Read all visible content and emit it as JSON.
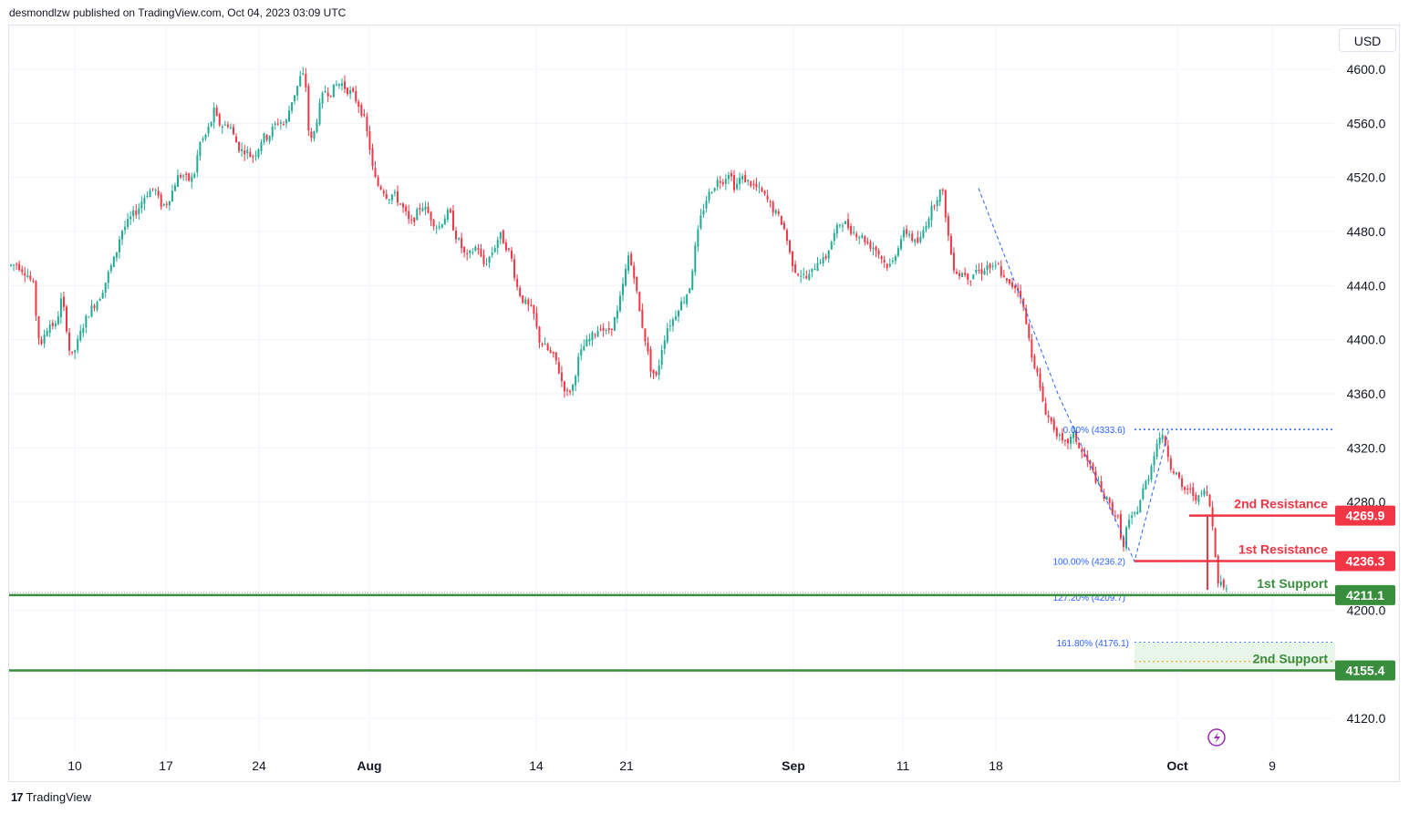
{
  "header": {
    "text": "desmondlzw published on TradingView.com, Oct 04, 2023 03:09 UTC"
  },
  "currency_label": "USD",
  "footer": {
    "brand": "TradingView",
    "logo_glyph": "17"
  },
  "colors": {
    "up": "#22ab94",
    "down": "#f23645",
    "resistance": "#f23645",
    "support": "#388e3c",
    "fib": "#2962ff",
    "grid": "#f0f3fa",
    "axis_text": "#131722"
  },
  "chart_data": {
    "type": "candlestick",
    "title": "",
    "y_axis": {
      "ticks": [
        4600.0,
        4560.0,
        4520.0,
        4480.0,
        4440.0,
        4400.0,
        4360.0,
        4320.0,
        4280.0,
        4200.0,
        4120.0
      ],
      "tick_labels": [
        "4600.0",
        "4560.0",
        "4520.0",
        "4480.0",
        "4440.0",
        "4400.0",
        "4360.0",
        "4320.0",
        "4280.0",
        "4200.0",
        "4120.0"
      ],
      "ylim": [
        4105,
        4620
      ]
    },
    "x_axis": {
      "tick_labels": [
        "10",
        "17",
        "24",
        "Aug",
        "14",
        "21",
        "Sep",
        "11",
        "18",
        "Oct",
        "9"
      ],
      "bold_labels": [
        "Aug",
        "Sep",
        "Oct"
      ]
    },
    "levels": [
      {
        "label": "2nd Resistance",
        "value": 4269.9,
        "value_label": "4269.9",
        "kind": "resistance"
      },
      {
        "label": "1st Resistance",
        "value": 4236.3,
        "value_label": "4236.3",
        "kind": "resistance"
      },
      {
        "label": "1st Support",
        "value": 4211.1,
        "value_label": "4211.1",
        "kind": "support"
      },
      {
        "label": "2nd Support",
        "value": 4155.4,
        "value_label": "4155.4",
        "kind": "support"
      }
    ],
    "fib_labels": [
      {
        "text": "0.00% (4333.6)",
        "value": 4333.6
      },
      {
        "text": "100.00% (4236.2)",
        "value": 4236.2
      },
      {
        "text": "127.20% (4209.7)",
        "value": 4209.7
      },
      {
        "text": "161.80% (4176.1)",
        "value": 4176.1
      }
    ],
    "ohlc_path": [
      [
        0,
        4455
      ],
      [
        3,
        4456
      ],
      [
        6,
        4452
      ],
      [
        9,
        4448
      ],
      [
        12,
        4440
      ],
      [
        14,
        4410
      ],
      [
        16,
        4392
      ],
      [
        18,
        4405
      ],
      [
        21,
        4412
      ],
      [
        24,
        4410
      ],
      [
        27,
        4430
      ],
      [
        29,
        4418
      ],
      [
        32,
        4385
      ],
      [
        35,
        4395
      ],
      [
        38,
        4408
      ],
      [
        41,
        4418
      ],
      [
        44,
        4425
      ],
      [
        47,
        4430
      ],
      [
        50,
        4440
      ],
      [
        53,
        4452
      ],
      [
        56,
        4462
      ],
      [
        59,
        4480
      ],
      [
        62,
        4485
      ],
      [
        65,
        4492
      ],
      [
        68,
        4496
      ],
      [
        71,
        4505
      ],
      [
        74,
        4510
      ],
      [
        77,
        4512
      ],
      [
        80,
        4500
      ],
      [
        83,
        4500
      ],
      [
        86,
        4508
      ],
      [
        89,
        4520
      ],
      [
        92,
        4522
      ],
      [
        95,
        4518
      ],
      [
        98,
        4520
      ],
      [
        101,
        4545
      ],
      [
        104,
        4550
      ],
      [
        107,
        4560
      ],
      [
        109,
        4570
      ],
      [
        111,
        4560
      ],
      [
        114,
        4558
      ],
      [
        117,
        4560
      ],
      [
        120,
        4548
      ],
      [
        123,
        4540
      ],
      [
        126,
        4540
      ],
      [
        129,
        4535
      ],
      [
        132,
        4540
      ],
      [
        135,
        4550
      ],
      [
        138,
        4550
      ],
      [
        141,
        4558
      ],
      [
        144,
        4562
      ],
      [
        147,
        4558
      ],
      [
        150,
        4575
      ],
      [
        153,
        4585
      ],
      [
        156,
        4598
      ],
      [
        158,
        4588
      ],
      [
        160,
        4545
      ],
      [
        162,
        4550
      ],
      [
        165,
        4570
      ],
      [
        168,
        4585
      ],
      [
        171,
        4582
      ],
      [
        174,
        4588
      ],
      [
        177,
        4590
      ],
      [
        180,
        4585
      ],
      [
        183,
        4582
      ],
      [
        186,
        4575
      ],
      [
        189,
        4565
      ],
      [
        192,
        4545
      ],
      [
        194,
        4525
      ],
      [
        196,
        4515
      ],
      [
        199,
        4512
      ],
      [
        202,
        4505
      ],
      [
        205,
        4508
      ],
      [
        208,
        4502
      ],
      [
        211,
        4495
      ],
      [
        214,
        4485
      ],
      [
        217,
        4492
      ],
      [
        220,
        4500
      ],
      [
        223,
        4495
      ],
      [
        226,
        4488
      ],
      [
        229,
        4482
      ],
      [
        232,
        4490
      ],
      [
        235,
        4495
      ],
      [
        238,
        4478
      ],
      [
        241,
        4470
      ],
      [
        244,
        4460
      ],
      [
        247,
        4465
      ],
      [
        250,
        4470
      ],
      [
        253,
        4455
      ],
      [
        256,
        4460
      ],
      [
        259,
        4468
      ],
      [
        262,
        4478
      ],
      [
        265,
        4470
      ],
      [
        268,
        4462
      ],
      [
        271,
        4440
      ],
      [
        274,
        4430
      ],
      [
        277,
        4425
      ],
      [
        280,
        4420
      ],
      [
        283,
        4400
      ],
      [
        286,
        4395
      ],
      [
        289,
        4390
      ],
      [
        292,
        4385
      ],
      [
        295,
        4370
      ],
      [
        298,
        4360
      ],
      [
        301,
        4365
      ],
      [
        304,
        4385
      ],
      [
        307,
        4395
      ],
      [
        310,
        4400
      ],
      [
        313,
        4405
      ],
      [
        316,
        4410
      ],
      [
        319,
        4405
      ],
      [
        322,
        4410
      ],
      [
        325,
        4420
      ],
      [
        328,
        4440
      ],
      [
        331,
        4462
      ],
      [
        334,
        4448
      ],
      [
        337,
        4420
      ],
      [
        340,
        4400
      ],
      [
        343,
        4378
      ],
      [
        346,
        4372
      ],
      [
        349,
        4395
      ],
      [
        352,
        4410
      ],
      [
        355,
        4415
      ],
      [
        358,
        4425
      ],
      [
        361,
        4430
      ],
      [
        364,
        4440
      ],
      [
        367,
        4470
      ],
      [
        370,
        4492
      ],
      [
        373,
        4505
      ],
      [
        376,
        4512
      ],
      [
        379,
        4518
      ],
      [
        382,
        4518
      ],
      [
        385,
        4525
      ],
      [
        388,
        4512
      ],
      [
        391,
        4520
      ],
      [
        394,
        4518
      ],
      [
        397,
        4515
      ],
      [
        400,
        4512
      ],
      [
        403,
        4508
      ],
      [
        406,
        4502
      ],
      [
        409,
        4495
      ],
      [
        412,
        4490
      ],
      [
        415,
        4480
      ],
      [
        418,
        4460
      ],
      [
        421,
        4450
      ],
      [
        424,
        4448
      ],
      [
        427,
        4445
      ],
      [
        430,
        4452
      ],
      [
        433,
        4460
      ],
      [
        436,
        4458
      ],
      [
        439,
        4470
      ],
      [
        442,
        4480
      ],
      [
        445,
        4488
      ],
      [
        448,
        4485
      ],
      [
        451,
        4480
      ],
      [
        454,
        4478
      ],
      [
        457,
        4475
      ],
      [
        460,
        4470
      ],
      [
        463,
        4468
      ],
      [
        466,
        4462
      ],
      [
        469,
        4455
      ],
      [
        472,
        4455
      ],
      [
        475,
        4468
      ],
      [
        478,
        4478
      ],
      [
        481,
        4480
      ],
      [
        484,
        4472
      ],
      [
        487,
        4472
      ],
      [
        490,
        4485
      ],
      [
        493,
        4495
      ],
      [
        496,
        4505
      ],
      [
        499,
        4512
      ],
      [
        501,
        4492
      ],
      [
        503,
        4470
      ],
      [
        505,
        4455
      ],
      [
        508,
        4448
      ],
      [
        511,
        4450
      ],
      [
        514,
        4445
      ],
      [
        517,
        4452
      ],
      [
        520,
        4450
      ],
      [
        523,
        4455
      ],
      [
        526,
        4452
      ],
      [
        529,
        4455
      ],
      [
        532,
        4445
      ],
      [
        535,
        4440
      ],
      [
        538,
        4440
      ],
      [
        541,
        4435
      ],
      [
        543,
        4420
      ],
      [
        545,
        4405
      ],
      [
        547,
        4390
      ],
      [
        550,
        4375
      ],
      [
        552,
        4360
      ],
      [
        555,
        4345
      ],
      [
        558,
        4338
      ],
      [
        561,
        4330
      ],
      [
        564,
        4322
      ],
      [
        567,
        4325
      ],
      [
        570,
        4330
      ],
      [
        573,
        4318
      ],
      [
        576,
        4312
      ],
      [
        579,
        4305
      ],
      [
        582,
        4295
      ],
      [
        585,
        4285
      ],
      [
        588,
        4280
      ],
      [
        591,
        4272
      ],
      [
        594,
        4266
      ],
      [
        596,
        4242
      ],
      [
        598,
        4262
      ],
      [
        601,
        4268
      ],
      [
        604,
        4275
      ],
      [
        607,
        4290
      ],
      [
        610,
        4300
      ],
      [
        613,
        4318
      ],
      [
        616,
        4330
      ],
      [
        619,
        4322
      ],
      [
        622,
        4305
      ],
      [
        625,
        4300
      ],
      [
        628,
        4288
      ],
      [
        631,
        4290
      ],
      [
        634,
        4285
      ],
      [
        637,
        4282
      ],
      [
        640,
        4290
      ],
      [
        643,
        4275
      ],
      [
        645,
        4250
      ],
      [
        647,
        4222
      ],
      [
        650,
        4218
      ],
      [
        653,
        4215
      ]
    ]
  }
}
